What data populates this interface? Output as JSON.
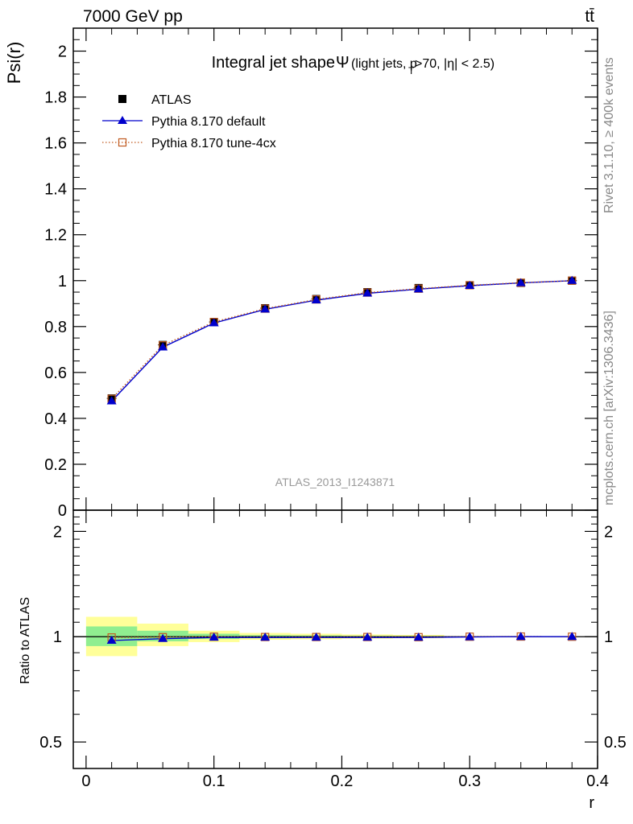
{
  "header": {
    "energy_label": "7000 GeV pp",
    "process_label": "tt̄"
  },
  "side_text": {
    "rivet": "Rivet 3.1.10, ≥ 400k events",
    "mcplots": "mcplots.cern.ch [arXiv:1306.3436]"
  },
  "analysis_id": "ATLAS_2013_I1243871",
  "colors": {
    "atlas": "#000000",
    "pythia_default": "#0000cc",
    "pythia_tune": "#c05a20",
    "band_inner": "#90ee90",
    "band_outer": "#ffff99"
  },
  "chart_data": [
    {
      "type": "line",
      "panel": "main",
      "title_main": "Integral jet shape",
      "title_symbol": "Ψ",
      "title_detail_pre": "(light jets, p",
      "title_detail_sub": "T",
      "title_detail_post": ">70, |η| < 2.5)",
      "xlabel": "r",
      "ylabel": "Psi(r)",
      "xlim": [
        -0.01,
        0.4
      ],
      "ylim": [
        0,
        2.1
      ],
      "x_ticks": [
        "0",
        "0.1",
        "0.2",
        "0.3",
        "0.4"
      ],
      "y_ticks": [
        "0",
        "0.2",
        "0.4",
        "0.6",
        "0.8",
        "1",
        "1.2",
        "1.4",
        "1.6",
        "1.8",
        "2"
      ],
      "legend_position": "top-left",
      "x": [
        0.02,
        0.06,
        0.1,
        0.14,
        0.18,
        0.22,
        0.26,
        0.3,
        0.34,
        0.38
      ],
      "series": [
        {
          "name": "ATLAS",
          "marker": "filled-square",
          "values": [
            0.487,
            0.72,
            0.82,
            0.88,
            0.92,
            0.95,
            0.968,
            0.98,
            0.99,
            1.0
          ]
        },
        {
          "name": "Pythia 8.170 default",
          "marker": "filled-triangle",
          "line": "solid",
          "values": [
            0.475,
            0.71,
            0.815,
            0.875,
            0.915,
            0.945,
            0.963,
            0.978,
            0.99,
            1.0
          ]
        },
        {
          "name": "Pythia 8.170 tune-4cx",
          "marker": "open-square",
          "line": "dotted",
          "values": [
            0.485,
            0.718,
            0.82,
            0.878,
            0.918,
            0.948,
            0.965,
            0.98,
            0.991,
            1.0
          ]
        }
      ]
    },
    {
      "type": "line",
      "panel": "ratio",
      "ylabel": "Ratio to ATLAS",
      "xlabel": "r",
      "xlim": [
        -0.01,
        0.4
      ],
      "ylim": [
        0.42,
        2.3
      ],
      "y_scale": "log",
      "y_ticks": [
        "0.5",
        "1",
        "2"
      ],
      "x": [
        0.02,
        0.06,
        0.1,
        0.14,
        0.18,
        0.22,
        0.26,
        0.3,
        0.34,
        0.38
      ],
      "band_bins": [
        [
          0.0,
          0.04
        ],
        [
          0.04,
          0.08
        ],
        [
          0.08,
          0.12
        ],
        [
          0.12,
          0.16
        ],
        [
          0.16,
          0.2
        ],
        [
          0.2,
          0.24
        ],
        [
          0.24,
          0.28
        ],
        [
          0.28,
          0.32
        ],
        [
          0.32,
          0.36
        ],
        [
          0.36,
          0.4
        ]
      ],
      "band_inner": [
        [
          0.94,
          1.07
        ],
        [
          0.97,
          1.04
        ],
        [
          0.985,
          1.02
        ],
        [
          0.99,
          1.01
        ],
        [
          0.993,
          1.008
        ],
        [
          0.995,
          1.005
        ],
        [
          0.996,
          1.004
        ],
        [
          0.998,
          1.002
        ],
        [
          0.999,
          1.001
        ],
        [
          0.9995,
          1.0005
        ]
      ],
      "band_outer": [
        [
          0.88,
          1.14
        ],
        [
          0.94,
          1.09
        ],
        [
          0.965,
          1.04
        ],
        [
          0.98,
          1.025
        ],
        [
          0.983,
          1.02
        ],
        [
          0.987,
          1.015
        ],
        [
          0.99,
          1.012
        ],
        [
          0.997,
          1.003
        ],
        [
          0.999,
          1.001
        ],
        [
          0.9995,
          1.0005
        ]
      ],
      "series": [
        {
          "name": "Pythia 8.170 default",
          "values": [
            0.975,
            0.987,
            0.995,
            0.995,
            0.995,
            0.995,
            0.995,
            0.998,
            1.0,
            1.0
          ]
        },
        {
          "name": "Pythia 8.170 tune-4cx",
          "values": [
            0.995,
            0.997,
            1.0,
            0.998,
            0.998,
            0.998,
            0.997,
            1.0,
            1.001,
            1.0
          ]
        }
      ]
    }
  ]
}
